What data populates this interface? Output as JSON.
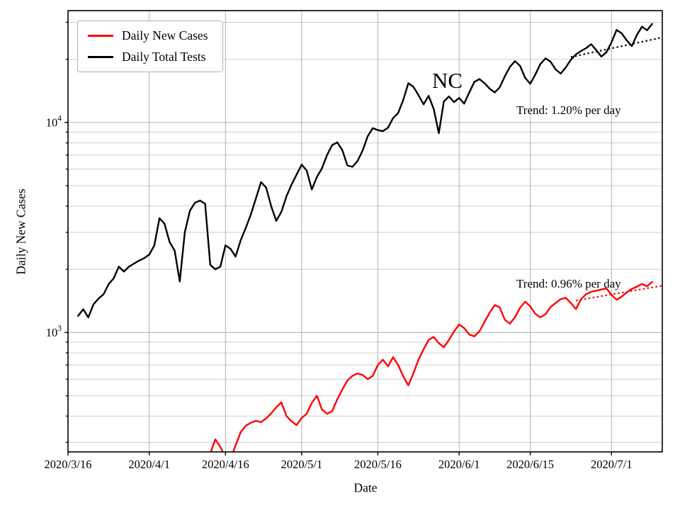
{
  "chart_data": {
    "type": "line",
    "title": "",
    "x_axis": {
      "label": "Date",
      "tick_labels": [
        "2020/3/16",
        "2020/4/1",
        "2020/4/16",
        "2020/5/1",
        "2020/5/16",
        "2020/6/1",
        "2020/6/15",
        "2020/7/1"
      ],
      "tick_days": [
        0,
        16,
        31,
        46,
        61,
        77,
        91,
        107
      ],
      "range_days": [
        0,
        117
      ],
      "start_date": "2020/3/16"
    },
    "y_axis": {
      "label": "Daily New Cases",
      "scale": "log",
      "tick_labels": [
        "10^3",
        "10^4"
      ],
      "tick_values": [
        1000,
        10000
      ],
      "range": [
        270,
        34100
      ],
      "grid": "on"
    },
    "legend_position": "upper-left",
    "series": [
      {
        "name": "Daily New Cases",
        "color": "#ff0000",
        "start_date": "2020/4/13",
        "start_day": 28,
        "values": [
          265,
          310,
          285,
          255,
          250,
          290,
          335,
          360,
          372,
          380,
          374,
          390,
          412,
          440,
          465,
          400,
          378,
          362,
          392,
          410,
          462,
          500,
          430,
          410,
          422,
          480,
          535,
          590,
          622,
          638,
          628,
          600,
          622,
          700,
          742,
          690,
          762,
          700,
          618,
          560,
          640,
          742,
          832,
          922,
          952,
          890,
          850,
          922,
          1012,
          1092,
          1050,
          978,
          958,
          1012,
          1122,
          1242,
          1352,
          1318,
          1150,
          1102,
          1182,
          1312,
          1402,
          1332,
          1228,
          1182,
          1222,
          1322,
          1382,
          1442,
          1462,
          1382,
          1292,
          1442,
          1522,
          1562,
          1582,
          1602,
          1622,
          1512,
          1432,
          1482,
          1552,
          1612,
          1652,
          1702,
          1662,
          1742
        ]
      },
      {
        "name": "Daily Total Tests",
        "color": "#000000",
        "start_date": "2020/3/18",
        "start_day": 2,
        "values": [
          1200,
          1290,
          1180,
          1360,
          1450,
          1520,
          1700,
          1810,
          2060,
          1950,
          2060,
          2130,
          2200,
          2260,
          2350,
          2600,
          3500,
          3300,
          2700,
          2450,
          1750,
          3000,
          3800,
          4150,
          4250,
          4100,
          2100,
          2000,
          2060,
          2600,
          2500,
          2300,
          2750,
          3150,
          3650,
          4350,
          5200,
          4900,
          4000,
          3400,
          3750,
          4450,
          5050,
          5650,
          6300,
          5900,
          4800,
          5500,
          6050,
          7000,
          7800,
          8050,
          7400,
          6250,
          6150,
          6550,
          7350,
          8600,
          9400,
          9200,
          9100,
          9450,
          10500,
          11100,
          12800,
          15400,
          14800,
          13500,
          12200,
          13400,
          11600,
          8900,
          12600,
          13300,
          12500,
          13100,
          12300,
          13900,
          15600,
          16100,
          15400,
          14500,
          13900,
          14700,
          16600,
          18400,
          19600,
          18600,
          16300,
          15300,
          16900,
          19000,
          20200,
          19500,
          17900,
          17100,
          18300,
          19900,
          21100,
          21900,
          22600,
          23600,
          22100,
          20600,
          21600,
          24100,
          27600,
          26600,
          24600,
          23100,
          26100,
          28600,
          27500,
          29500
        ]
      }
    ],
    "trend_lines": [
      {
        "name": "tests-trend",
        "label": "Trend: 1.20% per day",
        "color": "#000000",
        "rate_pct_per_day": 1.2,
        "start_day": 99,
        "end_day": 117,
        "start_value": 20500
      },
      {
        "name": "cases-trend",
        "label": "Trend: 0.96% per day",
        "color": "#ff0000",
        "rate_pct_per_day": 0.96,
        "start_day": 100,
        "end_day": 117,
        "start_value": 1420
      }
    ],
    "annotations": [
      {
        "text": "NC",
        "x_day": 75,
        "y_value": 15500
      },
      {
        "text": "Trend: 1.20% per day",
        "x_day": 95,
        "y_value": 12500
      },
      {
        "text": "Trend: 0.96% per day",
        "x_day": 95,
        "y_value": 1700
      }
    ]
  }
}
